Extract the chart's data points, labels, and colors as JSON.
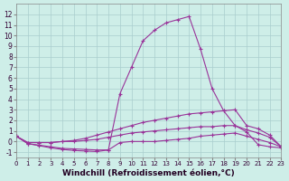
{
  "background_color": "#ceeee8",
  "line_color": "#993399",
  "xlabel": "Windchill (Refroidissement éolien,°C)",
  "xlabel_fontsize": 6.5,
  "xlim": [
    0,
    23
  ],
  "ylim": [
    -1.5,
    13
  ],
  "yticks": [
    -1,
    0,
    1,
    2,
    3,
    4,
    5,
    6,
    7,
    8,
    9,
    10,
    11,
    12
  ],
  "xticks": [
    0,
    1,
    2,
    3,
    4,
    5,
    6,
    7,
    8,
    9,
    10,
    11,
    12,
    13,
    14,
    15,
    16,
    17,
    18,
    19,
    20,
    21,
    22,
    23
  ],
  "grid_color": "#aacece",
  "curves": [
    {
      "x": [
        0,
        1,
        2,
        3,
        4,
        5,
        6,
        7,
        8,
        9,
        10,
        11,
        12,
        13,
        14,
        15,
        16,
        17,
        18,
        19,
        20,
        21,
        22,
        23
      ],
      "y": [
        0.5,
        -0.2,
        -0.35,
        -0.5,
        -0.65,
        -0.7,
        -0.75,
        -0.8,
        -0.8,
        4.5,
        7.0,
        9.5,
        10.5,
        11.2,
        11.5,
        11.8,
        8.7,
        5.0,
        2.9,
        1.5,
        0.9,
        -0.3,
        -0.5,
        -0.6
      ]
    },
    {
      "x": [
        0,
        1,
        2,
        3,
        4,
        5,
        6,
        7,
        8,
        9,
        10,
        11,
        12,
        13,
        14,
        15,
        16,
        17,
        18,
        19,
        20,
        21,
        22,
        23
      ],
      "y": [
        0.5,
        -0.1,
        -0.1,
        -0.1,
        0.0,
        0.1,
        0.3,
        0.6,
        0.9,
        1.2,
        1.5,
        1.8,
        2.0,
        2.2,
        2.4,
        2.6,
        2.7,
        2.8,
        2.9,
        3.0,
        1.5,
        1.2,
        0.6,
        -0.5
      ]
    },
    {
      "x": [
        0,
        1,
        2,
        3,
        4,
        5,
        6,
        7,
        8,
        9,
        10,
        11,
        12,
        13,
        14,
        15,
        16,
        17,
        18,
        19,
        20,
        21,
        22,
        23
      ],
      "y": [
        0.5,
        -0.1,
        -0.1,
        -0.1,
        0.0,
        0.0,
        0.1,
        0.2,
        0.4,
        0.6,
        0.8,
        0.9,
        1.0,
        1.1,
        1.2,
        1.3,
        1.4,
        1.4,
        1.5,
        1.5,
        1.1,
        0.8,
        0.4,
        -0.5
      ]
    },
    {
      "x": [
        0,
        1,
        2,
        3,
        4,
        5,
        6,
        7,
        8,
        9,
        10,
        11,
        12,
        13,
        14,
        15,
        16,
        17,
        18,
        19,
        20,
        21,
        22,
        23
      ],
      "y": [
        0.5,
        -0.2,
        -0.4,
        -0.6,
        -0.75,
        -0.85,
        -0.9,
        -0.95,
        -0.8,
        -0.1,
        0.0,
        0.0,
        0.0,
        0.1,
        0.2,
        0.3,
        0.5,
        0.6,
        0.7,
        0.8,
        0.5,
        0.2,
        -0.1,
        -0.5
      ]
    }
  ]
}
